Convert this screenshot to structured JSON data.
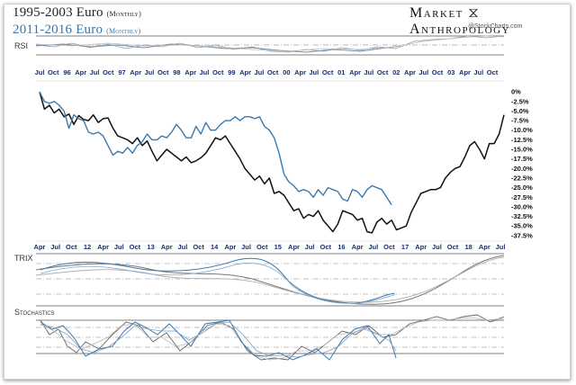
{
  "header": {
    "title_line1": "1995-2003 Euro",
    "title_line1_sub": "(Monthly)",
    "title_line2": "2011-2016 Euro",
    "title_line2_sub": "(Monthly)",
    "brand_left": "Market",
    "brand_right": "Anthropology",
    "watermark": "@StockCharts.com"
  },
  "panels": {
    "rsi": "RSI",
    "trix": "TRIX",
    "stoch": "Stochastics"
  },
  "colors": {
    "series_1995": "#111111",
    "series_2011": "#3b78ad",
    "ticks_top": "#1a2f6b",
    "ticks_bottom": "#1a2f6b"
  },
  "chart_data": {
    "type": "line",
    "top_axis_labels": [
      "Jul",
      "Oct",
      "96",
      "Apr",
      "Jul",
      "Oct",
      "97",
      "Apr",
      "Jul",
      "Oct",
      "98",
      "Apr",
      "Jul",
      "Oct",
      "99",
      "Apr",
      "Jul",
      "Oct",
      "00",
      "Apr",
      "Jul",
      "Oct",
      "01",
      "Apr",
      "Jul",
      "Oct",
      "02",
      "Apr",
      "Jul",
      "Oct",
      "03",
      "Apr",
      "Jul",
      "Oct"
    ],
    "bottom_axis_labels": [
      "Apr",
      "Jul",
      "Oct",
      "12",
      "Apr",
      "Jul",
      "Oct",
      "13",
      "Apr",
      "Jul",
      "Oct",
      "14",
      "Apr",
      "Jul",
      "Oct",
      "15",
      "Apr",
      "Jul",
      "Oct",
      "16",
      "Apr",
      "Jul",
      "Oct",
      "17",
      "Apr",
      "Jul",
      "Oct",
      "18",
      "Apr",
      "Jul"
    ],
    "y_ticks": [
      "0%",
      "-2.5%",
      "-5.0%",
      "-7.5%",
      "-10.0%",
      "-12.5%",
      "-15.0%",
      "-17.5%",
      "-20.0%",
      "-22.5%",
      "-25.0%",
      "-27.5%",
      "-30.0%",
      "-32.5%",
      "-35.0%",
      "-37.5%"
    ],
    "ylim": [
      -38,
      0.5
    ],
    "series": [
      {
        "values": [
          0,
          -4.5,
          -3.5,
          -5.5,
          -4.5,
          -6.5,
          -5.8,
          -8.5,
          -6.2,
          -7.2,
          -7.5,
          -6.0,
          -8.0,
          -7.0,
          -6.8,
          -9.5,
          -11.5,
          -12.0,
          -12.5,
          -13.5,
          -12.0,
          -14.0,
          -12.8,
          -15.5,
          -18.0,
          -16.5,
          -15.0,
          -16.0,
          -17.0,
          -18.0,
          -17.0,
          -18.5,
          -18.0,
          -17.2,
          -16.0,
          -14.0,
          -12.0,
          -12.5,
          -11.5,
          -13.5,
          -15.5,
          -17.5,
          -20.0,
          -21.5,
          -23.0,
          -22.0,
          -24.0,
          -22.5,
          -26.5,
          -26.0,
          -27.0,
          -29.0,
          -31.0,
          -30.5,
          -33.0,
          -32.0,
          -32.5,
          -31.0,
          -33.5,
          -35.0,
          -36.5,
          -34.5,
          -31.0,
          -31.5,
          -32.0,
          -33.5,
          -33.0,
          -36.5,
          -36.8,
          -34.0,
          -33.0,
          -34.5,
          -33.5,
          -36.0,
          -35.5,
          -35.0,
          -31.5,
          -29.0,
          -26.5,
          -26.0,
          -25.5,
          -25.5,
          -25.0,
          -22.5,
          -21.0,
          -20.0,
          -19.5,
          -17.0,
          -14.0,
          -13.0,
          -15.0,
          -17.5,
          -13.5,
          -13.5,
          -11.0,
          -6.0
        ]
      },
      {
        "values": [
          0,
          -2.5,
          -3.0,
          -2.5,
          -3.5,
          -5.0,
          -9.5,
          -6.0,
          -7.0,
          -7.5,
          -10.5,
          -11.0,
          -10.5,
          -11.5,
          -14.0,
          -16.5,
          -15.5,
          -16.0,
          -14.5,
          -16.0,
          -14.0,
          -13.0,
          -11.0,
          -12.5,
          -12.5,
          -11.5,
          -12.0,
          -10.5,
          -8.5,
          -10.0,
          -12.0,
          -12.0,
          -9.0,
          -11.0,
          -8.0,
          -10.0,
          -10.0,
          -8.5,
          -7.5,
          -7.5,
          -6.5,
          -7.5,
          -6.5,
          -6.5,
          -7.0,
          -6.5,
          -9.0,
          -10.0,
          -12.0,
          -16.0,
          -21.5,
          -23.5,
          -24.5,
          -26.0,
          -25.5,
          -26.0,
          -27.5,
          -25.5,
          -27.0,
          -25.0,
          -25.5,
          -26.0,
          -28.0,
          -28.5,
          -25.5,
          -26.0,
          -27.5,
          -25.5,
          -24.5,
          -25.0,
          -25.5,
          -27.5,
          -29.5
        ]
      }
    ]
  }
}
